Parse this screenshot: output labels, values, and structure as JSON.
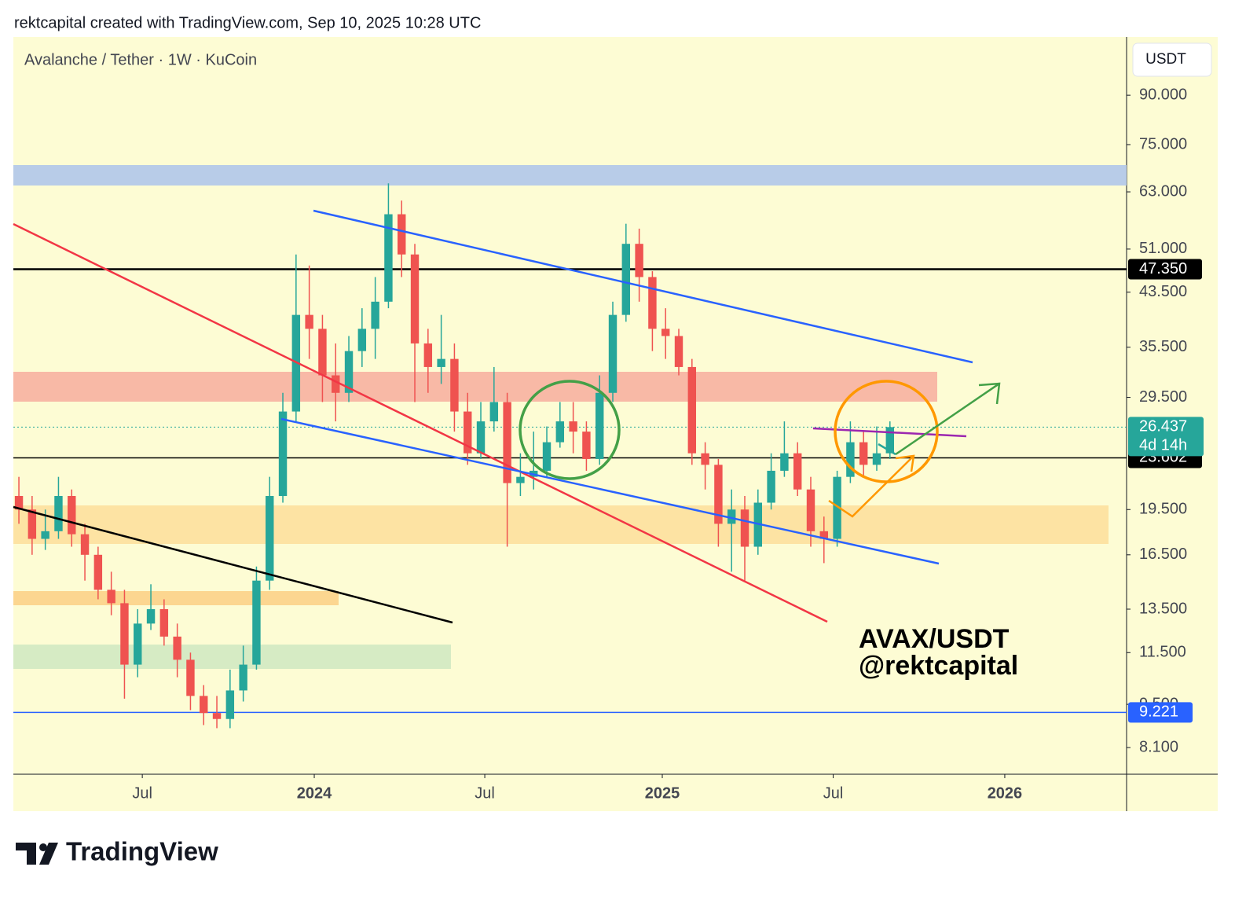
{
  "header": "rektcapital created with TradingView.com, Sep 10, 2025 10:28 UTC",
  "footer_logo": "TradingView",
  "chart_data": {
    "type": "candlestick",
    "title": "Avalanche / Tether · 1W · KuCoin",
    "currency": "USDT",
    "annotation": [
      "AVAX/USDT",
      "@rektcapital"
    ],
    "log_scale": true,
    "grid": false,
    "up_color": "#26a69a",
    "down_color": "#ef5350",
    "open": [
      20.5,
      19.5,
      17.5,
      18.0,
      20.5,
      17.8,
      16.5,
      14.5,
      13.8,
      11.0,
      12.8,
      13.5,
      12.2,
      11.2,
      9.8,
      9.2,
      9.0,
      10.0,
      11.0,
      15.0,
      20.5,
      28.0,
      40.0,
      38.0,
      32.0,
      30.0,
      35.0,
      38.0,
      42.0,
      58.0,
      50.0,
      36.0,
      33.0,
      34.0,
      28.0,
      24.0,
      27.0,
      29.0,
      21.5,
      22.0,
      22.5,
      25.0,
      27.0,
      26.0,
      23.5,
      30.0,
      40.0,
      52.0,
      46.0,
      38.0,
      37.0,
      33.0,
      24.0,
      23.0,
      18.5,
      19.5,
      17.0,
      20.0,
      22.5,
      24.0,
      21.0,
      18.0,
      17.5,
      22.0,
      25.0,
      23.0,
      24.0
    ],
    "high": [
      22,
      20.5,
      19.5,
      22,
      21,
      18.5,
      17,
      15.5,
      14.5,
      13.5,
      14.8,
      14,
      12.8,
      11.5,
      10.2,
      9.8,
      10.8,
      11.8,
      15.8,
      22,
      30,
      50,
      48,
      40,
      36,
      37,
      41,
      46,
      65,
      61,
      52,
      38,
      40,
      36,
      30,
      29,
      33,
      30,
      24,
      26,
      26.5,
      29,
      29,
      27,
      32,
      42,
      56,
      55,
      47,
      41,
      38,
      34,
      25,
      23.5,
      21,
      20.5,
      21,
      24,
      27,
      25,
      22,
      19,
      22.5,
      27,
      26,
      26.5,
      27
    ],
    "low": [
      18.5,
      16.5,
      16.8,
      17.5,
      17,
      15,
      14,
      13.2,
      9.7,
      10.5,
      12.5,
      11.8,
      10.5,
      9.3,
      8.8,
      8.7,
      8.7,
      9.6,
      10.8,
      14.5,
      20,
      27,
      34,
      29,
      27,
      29,
      33,
      34,
      41,
      46,
      29,
      30,
      31,
      26,
      23,
      23.5,
      26,
      17,
      20.5,
      21,
      22,
      24.5,
      24,
      22.5,
      23,
      29,
      39,
      42,
      35,
      34,
      32,
      23,
      21,
      17,
      15.5,
      15,
      16.5,
      19.5,
      22,
      20.5,
      17,
      16,
      17,
      21.5,
      22,
      22.5,
      23.5
    ],
    "close": [
      19.5,
      17.5,
      18.0,
      20.5,
      17.8,
      16.5,
      14.5,
      13.8,
      11.0,
      12.8,
      13.5,
      12.2,
      11.2,
      9.8,
      9.2,
      9.0,
      10.0,
      11.0,
      15.0,
      20.5,
      28.0,
      40.0,
      38.0,
      32.0,
      30.0,
      35.0,
      38.0,
      42.0,
      58.0,
      50.0,
      36.0,
      33.0,
      34.0,
      28.0,
      24.0,
      27.0,
      29.0,
      21.5,
      22.0,
      22.5,
      25.0,
      27.0,
      26.0,
      23.5,
      30.0,
      40.0,
      52.0,
      46.0,
      38.0,
      37.0,
      33.0,
      24.0,
      23.0,
      18.5,
      19.5,
      17.0,
      20.0,
      22.5,
      24.0,
      21.0,
      18.0,
      17.5,
      22.0,
      25.0,
      23.0,
      24.0,
      26.437
    ],
    "xlim": [
      -0.42,
      83.93
    ],
    "xticks": [
      {
        "value": 9.35,
        "label": "Jul"
      },
      {
        "value": 22.38,
        "label": "2024"
      },
      {
        "value": 35.3,
        "label": "Jul"
      },
      {
        "value": 48.75,
        "label": "2025"
      },
      {
        "value": 61.7,
        "label": "Jul"
      },
      {
        "value": 74.7,
        "label": "2026"
      }
    ],
    "ylim": [
      7.34,
      111.6
    ],
    "yticks": [
      {
        "value": 90,
        "label": "90.000"
      },
      {
        "value": 75,
        "label": "75.000"
      },
      {
        "value": 63,
        "label": "63.000"
      },
      {
        "value": 51,
        "label": "51.000"
      },
      {
        "value": 43.5,
        "label": "43.500"
      },
      {
        "value": 35.5,
        "label": "35.500"
      },
      {
        "value": 29.5,
        "label": "29.500"
      },
      {
        "value": 19.5,
        "label": "19.500"
      },
      {
        "value": 16.5,
        "label": "16.500"
      },
      {
        "value": 13.5,
        "label": "13.500"
      },
      {
        "value": 11.5,
        "label": "11.500"
      },
      {
        "value": 9.5,
        "label": "9.500"
      },
      {
        "value": 8.1,
        "label": "8.100"
      }
    ],
    "price_lines": [
      {
        "value": 47.35,
        "label": "47.350",
        "color": "#000000"
      },
      {
        "value": 23.602,
        "label": "23.602",
        "color": "#000000"
      },
      {
        "value": 9.221,
        "label": "9.221",
        "color": "#2962ff"
      },
      {
        "value": 26.437,
        "label": "26.437",
        "color": "#26a69a",
        "countdown": "4d 14h"
      }
    ]
  }
}
